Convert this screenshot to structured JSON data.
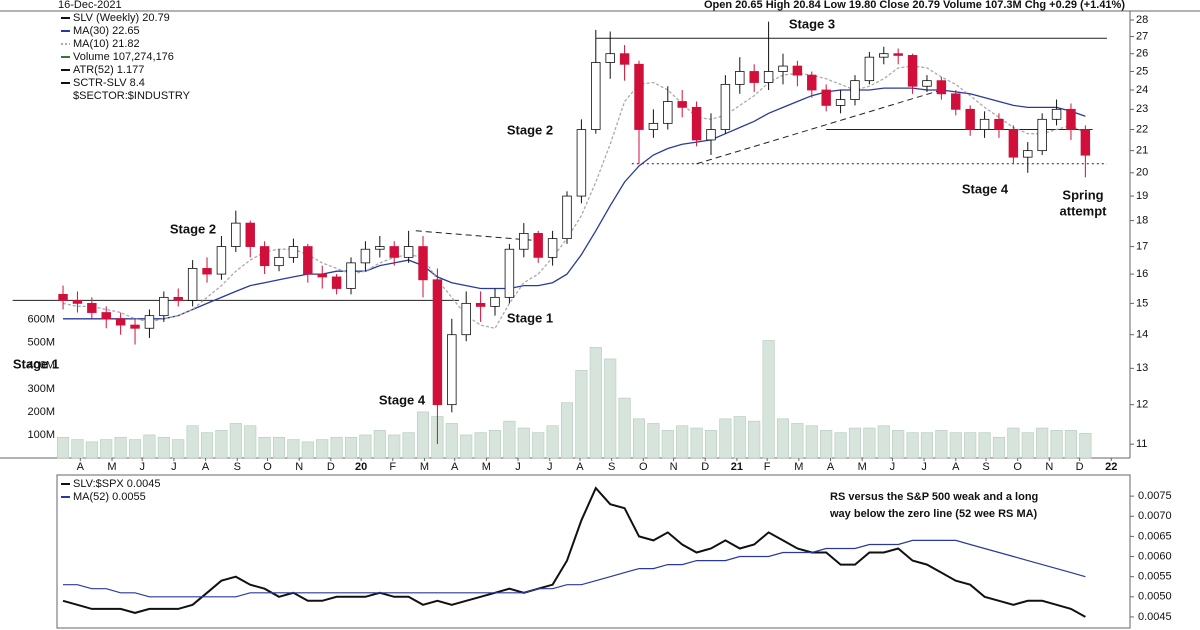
{
  "chart_data": [
    {
      "type": "candlestick",
      "header_date": "16-Dec-2021",
      "header_quote": "Open 20.65  High 20.84  Low 19.80  Close 20.79  Volume 107.3M  Chg +0.29 (+1.41%)",
      "log_scale": true,
      "xlim": [
        -0.35,
        74.1
      ],
      "xticks": [
        {
          "value": 1.2,
          "label": "A"
        },
        {
          "value": 3.4,
          "label": "M"
        },
        {
          "value": 5.5,
          "label": "J"
        },
        {
          "value": 7.7,
          "label": "J"
        },
        {
          "value": 9.9,
          "label": "A"
        },
        {
          "value": 12.1,
          "label": "S"
        },
        {
          "value": 14.2,
          "label": "O"
        },
        {
          "value": 16.4,
          "label": "N"
        },
        {
          "value": 18.6,
          "label": "D"
        },
        {
          "value": 20.7,
          "label": "20"
        },
        {
          "value": 22.9,
          "label": "F"
        },
        {
          "value": 25.1,
          "label": "M"
        },
        {
          "value": 27.2,
          "label": "A"
        },
        {
          "value": 29.4,
          "label": "M"
        },
        {
          "value": 31.6,
          "label": "J"
        },
        {
          "value": 33.8,
          "label": "J"
        },
        {
          "value": 35.9,
          "label": "A"
        },
        {
          "value": 38.1,
          "label": "S"
        },
        {
          "value": 40.3,
          "label": "O"
        },
        {
          "value": 42.4,
          "label": "N"
        },
        {
          "value": 44.6,
          "label": "D"
        },
        {
          "value": 46.8,
          "label": "21"
        },
        {
          "value": 48.9,
          "label": "F"
        },
        {
          "value": 51.1,
          "label": "M"
        },
        {
          "value": 53.3,
          "label": "A"
        },
        {
          "value": 55.5,
          "label": "M"
        },
        {
          "value": 57.6,
          "label": "J"
        },
        {
          "value": 59.8,
          "label": "J"
        },
        {
          "value": 62.0,
          "label": "A"
        },
        {
          "value": 64.1,
          "label": "S"
        },
        {
          "value": 66.3,
          "label": "O"
        },
        {
          "value": 68.5,
          "label": "N"
        },
        {
          "value": 70.6,
          "label": "D"
        },
        {
          "value": 72.8,
          "label": "22"
        }
      ],
      "ylim": [
        10.67,
        28.5
      ],
      "yticks": [
        11,
        12,
        13,
        14,
        15,
        16,
        17,
        18,
        19,
        20,
        21,
        22,
        23,
        24,
        25,
        26,
        27,
        28
      ],
      "candles": {
        "name": "SLV (Weekly) 20.79",
        "up_color": "#ffffff",
        "down_color": "#d0103a",
        "open": [
          15.3,
          15.1,
          15.0,
          14.7,
          14.5,
          14.3,
          14.2,
          14.6,
          15.2,
          15.1,
          16.2,
          16.0,
          17.0,
          17.9,
          17.0,
          16.3,
          16.6,
          17.0,
          16.0,
          15.9,
          15.5,
          16.4,
          16.9,
          17.0,
          16.6,
          17.0,
          15.8,
          12.0,
          14.0,
          15.0,
          14.9,
          15.2,
          16.9,
          17.5,
          16.6,
          17.3,
          19.0,
          22.0,
          25.5,
          26.0,
          25.4,
          22.0,
          22.3,
          23.4,
          23.1,
          21.5,
          22.0,
          24.3,
          25.0,
          24.4,
          25.0,
          25.3,
          24.8,
          24.0,
          23.2,
          23.5,
          24.5,
          25.8,
          26.0,
          25.9,
          24.2,
          24.5,
          23.8,
          23.0,
          22.0,
          22.5,
          22.0,
          20.7,
          21.0,
          22.5,
          23.0,
          22.0
        ],
        "high": [
          15.6,
          15.4,
          15.2,
          14.9,
          14.7,
          14.5,
          14.8,
          15.4,
          15.5,
          16.5,
          16.6,
          17.4,
          18.4,
          18.0,
          17.2,
          16.9,
          17.3,
          17.1,
          16.3,
          16.0,
          16.6,
          17.2,
          17.4,
          17.2,
          17.6,
          17.4,
          16.2,
          14.5,
          15.4,
          15.4,
          15.5,
          17.1,
          17.9,
          17.6,
          17.6,
          19.2,
          22.5,
          27.4,
          27.3,
          26.5,
          25.6,
          23.0,
          24.2,
          24.0,
          23.4,
          22.8,
          24.8,
          25.8,
          25.4,
          27.9,
          26.0,
          25.6,
          25.0,
          24.3,
          24.0,
          24.8,
          26.1,
          26.4,
          26.3,
          26.0,
          24.8,
          24.7,
          24.0,
          23.2,
          22.9,
          22.8,
          22.2,
          21.4,
          22.8,
          23.5,
          23.3,
          22.2
        ],
        "low": [
          14.8,
          14.7,
          14.5,
          14.2,
          14.0,
          13.7,
          13.9,
          14.4,
          14.9,
          14.9,
          15.7,
          15.8,
          16.8,
          16.6,
          16.0,
          16.1,
          16.4,
          15.7,
          15.5,
          15.3,
          15.3,
          16.1,
          16.6,
          16.3,
          16.4,
          15.2,
          11.0,
          11.8,
          13.8,
          14.4,
          14.6,
          15.0,
          16.6,
          16.4,
          16.3,
          17.1,
          18.7,
          21.8,
          24.6,
          24.5,
          20.4,
          21.6,
          22.0,
          22.6,
          21.2,
          20.8,
          21.8,
          23.8,
          23.9,
          24.0,
          24.3,
          24.2,
          23.6,
          22.9,
          22.8,
          23.2,
          24.3,
          25.4,
          25.4,
          23.8,
          23.9,
          23.5,
          22.7,
          21.7,
          21.6,
          21.6,
          20.4,
          20.0,
          20.8,
          22.2,
          21.5,
          19.8
        ],
        "close": [
          15.1,
          15.0,
          14.7,
          14.5,
          14.3,
          14.2,
          14.6,
          15.2,
          15.1,
          16.2,
          16.0,
          17.0,
          17.9,
          17.0,
          16.3,
          16.6,
          17.0,
          16.0,
          15.9,
          15.5,
          16.4,
          16.9,
          17.0,
          16.6,
          17.0,
          15.8,
          12.0,
          14.0,
          15.0,
          14.9,
          15.2,
          16.9,
          17.5,
          16.6,
          17.3,
          19.0,
          22.0,
          25.5,
          26.0,
          25.4,
          22.0,
          22.3,
          23.4,
          23.1,
          21.5,
          22.0,
          24.3,
          25.0,
          24.4,
          25.0,
          25.3,
          24.8,
          24.0,
          23.2,
          23.5,
          24.5,
          25.8,
          26.0,
          25.9,
          24.2,
          24.5,
          23.8,
          23.0,
          22.0,
          22.5,
          22.0,
          20.7,
          21.0,
          22.5,
          23.0,
          22.0,
          20.79
        ]
      },
      "series": [
        {
          "name": "MA(30) 22.65",
          "color": "#2a3a9c",
          "dash": "none",
          "values": [
            14.5,
            14.5,
            14.5,
            14.5,
            14.5,
            14.5,
            14.5,
            14.5,
            14.6,
            14.8,
            15.0,
            15.2,
            15.4,
            15.6,
            15.7,
            15.8,
            15.9,
            16.0,
            16.0,
            16.1,
            16.1,
            16.1,
            16.3,
            16.4,
            16.5,
            16.3,
            15.9,
            15.7,
            15.6,
            15.5,
            15.5,
            15.5,
            15.6,
            15.6,
            15.7,
            16.0,
            16.7,
            17.6,
            18.6,
            19.6,
            20.3,
            20.8,
            21.1,
            21.3,
            21.4,
            21.5,
            21.8,
            22.1,
            22.4,
            22.8,
            23.1,
            23.4,
            23.7,
            23.9,
            24.0,
            24.0,
            24.0,
            24.1,
            24.1,
            24.1,
            24.0,
            24.0,
            23.9,
            23.8,
            23.6,
            23.4,
            23.2,
            23.1,
            23.1,
            23.1,
            22.9,
            22.65
          ]
        },
        {
          "name": "MA(10) 21.82",
          "color": "#aaaaaa",
          "dash": "3 2",
          "values": [
            15.0,
            14.9,
            14.9,
            14.8,
            14.7,
            14.5,
            14.4,
            14.5,
            14.6,
            14.8,
            15.2,
            15.6,
            16.1,
            16.5,
            16.8,
            16.9,
            16.9,
            16.7,
            16.4,
            16.2,
            16.0,
            16.1,
            16.4,
            16.6,
            16.7,
            16.6,
            15.8,
            15.2,
            14.6,
            14.3,
            14.2,
            15.0,
            15.7,
            16.0,
            16.6,
            17.3,
            18.2,
            19.6,
            21.3,
            23.4,
            24.3,
            24.4,
            24.0,
            23.3,
            22.6,
            22.5,
            22.7,
            23.2,
            23.7,
            24.4,
            24.8,
            24.9,
            24.8,
            24.6,
            24.3,
            24.0,
            24.2,
            24.6,
            25.2,
            25.3,
            25.2,
            24.7,
            24.3,
            23.7,
            23.1,
            22.6,
            22.1,
            21.8,
            21.8,
            22.0,
            22.2,
            21.82
          ]
        }
      ],
      "volume": {
        "name": "Volume 107,274,176",
        "color": "#d6e4dc",
        "ylim": [
          0,
          1935000000
        ],
        "yticks": [
          {
            "value": 100000000,
            "label": "100M"
          },
          {
            "value": 200000000,
            "label": "200M"
          },
          {
            "value": 300000000,
            "label": "300M"
          },
          {
            "value": 400000000,
            "label": "400M"
          },
          {
            "value": 500000000,
            "label": "500M"
          },
          {
            "value": 600000000,
            "label": "600M"
          }
        ],
        "values": [
          90000000.0,
          80000000.0,
          70000000.0,
          80000000.0,
          90000000.0,
          80000000.0,
          100000000.0,
          90000000.0,
          80000000.0,
          140000000.0,
          110000000.0,
          120000000.0,
          150000000.0,
          140000000.0,
          90000000.0,
          90000000.0,
          80000000.0,
          70000000.0,
          80000000.0,
          90000000.0,
          90000000.0,
          100000000.0,
          120000000.0,
          100000000.0,
          110000000.0,
          200000000.0,
          180000000.0,
          150000000.0,
          100000000.0,
          110000000.0,
          120000000.0,
          160000000.0,
          130000000.0,
          110000000.0,
          140000000.0,
          240000000.0,
          380000000.0,
          480000000.0,
          430000000.0,
          260000000.0,
          170000000.0,
          150000000.0,
          120000000.0,
          140000000.0,
          130000000.0,
          120000000.0,
          170000000.0,
          180000000.0,
          160000000.0,
          510000000.0,
          170000000.0,
          150000000.0,
          140000000.0,
          120000000.0,
          110000000.0,
          130000000.0,
          130000000.0,
          140000000.0,
          120000000.0,
          110000000.0,
          110000000.0,
          120000000.0,
          110000000.0,
          110000000.0,
          110000000.0,
          90000000.0,
          130000000.0,
          110000000.0,
          130000000.0,
          120000000.0,
          120000000.0,
          107000000.0
        ]
      },
      "legend_extra": [
        "ATR(52) 1.177",
        "SCTR-SLV 8.4",
        "$SECTOR:$INDUSTRY"
      ],
      "annotations": [
        "Stage 1",
        "Stage 2",
        "Stage 4",
        "Stage 1",
        "Stage 2",
        "Stage 3",
        "Stage 4",
        [
          "Spring",
          "attempt"
        ]
      ],
      "levels": [
        {
          "x": [
            -3.5,
            27.5
          ],
          "y": [
            15.1,
            15.1
          ],
          "style": "solid"
        },
        {
          "x": [
            37,
            72.5
          ],
          "y": [
            26.9,
            26.9
          ],
          "style": "solid"
        },
        {
          "x": [
            53,
            71.5
          ],
          "y": [
            22.0,
            22.0
          ],
          "style": "solid"
        },
        {
          "x": [
            39.5,
            72.5
          ],
          "y": [
            20.4,
            20.4
          ],
          "style": "dotted"
        },
        {
          "x": [
            24.5,
            33.5
          ],
          "y": [
            17.6,
            17.2
          ],
          "style": "dashed"
        },
        {
          "x": [
            44,
            61
          ],
          "y": [
            20.4,
            24.0
          ],
          "style": "dashed"
        }
      ]
    },
    {
      "type": "line",
      "xlim": [
        -0.35,
        74.1
      ],
      "ylim": [
        0.004225,
        0.008025
      ],
      "yticks": [
        0.0045,
        {
          "value": 0.005,
          "label": "0.0050"
        },
        0.0055,
        {
          "value": 0.006,
          "label": "0.0060"
        },
        0.0065,
        {
          "value": 0.007,
          "label": "0.0070"
        },
        0.0075
      ],
      "series": [
        {
          "name": "SLV:$SPX 0.0045",
          "color": "#111111",
          "width": 2,
          "values": [
            0.0049,
            0.0048,
            0.0047,
            0.0047,
            0.0047,
            0.0046,
            0.0047,
            0.0047,
            0.0047,
            0.0048,
            0.0051,
            0.0054,
            0.0055,
            0.0053,
            0.0052,
            0.005,
            0.0051,
            0.0049,
            0.0049,
            0.005,
            0.005,
            0.005,
            0.0051,
            0.005,
            0.005,
            0.0048,
            0.0049,
            0.0048,
            0.0049,
            0.005,
            0.0051,
            0.0052,
            0.0051,
            0.0052,
            0.0053,
            0.0059,
            0.0069,
            0.0077,
            0.0073,
            0.0072,
            0.0065,
            0.0064,
            0.0066,
            0.0063,
            0.0061,
            0.0062,
            0.0064,
            0.0062,
            0.0063,
            0.0066,
            0.0064,
            0.0062,
            0.0061,
            0.0061,
            0.0058,
            0.0058,
            0.0061,
            0.0061,
            0.0062,
            0.0059,
            0.0058,
            0.0056,
            0.0054,
            0.0053,
            0.005,
            0.0049,
            0.0048,
            0.0049,
            0.0049,
            0.0048,
            0.0047,
            0.0045
          ]
        },
        {
          "name": "MA(52) 0.0055",
          "color": "#2a3a9c",
          "width": 1.2,
          "values": [
            0.0053,
            0.0053,
            0.0052,
            0.0052,
            0.0051,
            0.0051,
            0.005,
            0.005,
            0.005,
            0.005,
            0.005,
            0.005,
            0.005,
            0.0051,
            0.0051,
            0.0051,
            0.0051,
            0.0051,
            0.0051,
            0.0051,
            0.0051,
            0.0051,
            0.0051,
            0.0051,
            0.0051,
            0.0051,
            0.0051,
            0.0051,
            0.0051,
            0.0051,
            0.0051,
            0.0051,
            0.0051,
            0.0052,
            0.0052,
            0.0053,
            0.0053,
            0.0054,
            0.0055,
            0.0056,
            0.0057,
            0.0057,
            0.0058,
            0.0058,
            0.0059,
            0.0059,
            0.0059,
            0.006,
            0.006,
            0.006,
            0.0061,
            0.0061,
            0.0061,
            0.0062,
            0.0062,
            0.0062,
            0.0063,
            0.0063,
            0.0063,
            0.0064,
            0.0064,
            0.0064,
            0.0064,
            0.0063,
            0.0062,
            0.0061,
            0.006,
            0.0059,
            0.0058,
            0.0057,
            0.0056,
            0.0055
          ]
        }
      ],
      "note": [
        "RS versus the S&P 500 weak and a long",
        "way below the zero line (52 wee RS MA)"
      ]
    }
  ]
}
